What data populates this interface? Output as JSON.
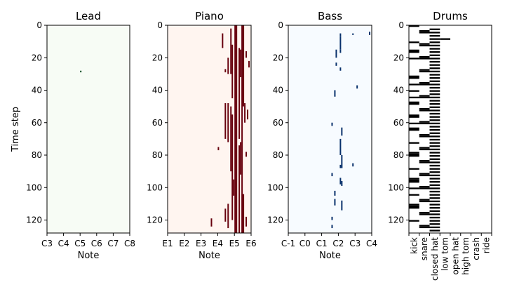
{
  "chart_data": [
    {
      "type": "heatmap",
      "title": "Lead",
      "xlabel": "Note",
      "ylabel": "Time step",
      "colors": {
        "background": "#f7fcf5",
        "note": "#00441b"
      },
      "x_ticks": [
        "C3",
        "C4",
        "C5",
        "C6",
        "C7",
        "C8"
      ],
      "y_ticks": [
        "0",
        "20",
        "40",
        "60",
        "80",
        "100",
        "120"
      ],
      "xlim": [
        "C3",
        "C8"
      ],
      "ylim": [
        0,
        128
      ],
      "notes": [
        {
          "pitch": "C5",
          "start": 28,
          "end": 29
        }
      ]
    },
    {
      "type": "heatmap",
      "title": "Piano",
      "xlabel": "Note",
      "colors": {
        "background": "#fff5f0",
        "note": "#67000d"
      },
      "x_ticks": [
        "E1",
        "E2",
        "E3",
        "E4",
        "E5",
        "E6"
      ],
      "y_ticks": [
        "0",
        "20",
        "40",
        "60",
        "80",
        "100",
        "120"
      ],
      "xlim": [
        "E1",
        "E6"
      ],
      "ylim": [
        0,
        128
      ],
      "notes": [
        {
          "pitch": "E5",
          "start": 0,
          "end": 128
        },
        {
          "pitch": "F5",
          "start": 0,
          "end": 128
        },
        {
          "pitch": "A5",
          "start": 0,
          "end": 128
        },
        {
          "pitch": "A#5",
          "start": 0,
          "end": 50
        },
        {
          "pitch": "G5",
          "start": 14,
          "end": 70
        },
        {
          "pitch": "C#5",
          "start": 2,
          "end": 30
        },
        {
          "pitch": "D5",
          "start": 12,
          "end": 45
        },
        {
          "pitch": "G#5",
          "start": 15,
          "end": 32
        },
        {
          "pitch": "G4",
          "start": 5,
          "end": 14
        },
        {
          "pitch": "B4",
          "start": 20,
          "end": 30
        },
        {
          "pitch": "A4",
          "start": 27,
          "end": 29
        },
        {
          "pitch": "C#5",
          "start": 50,
          "end": 90
        },
        {
          "pitch": "D5",
          "start": 55,
          "end": 120
        },
        {
          "pitch": "B4",
          "start": 48,
          "end": 72
        },
        {
          "pitch": "A4",
          "start": 48,
          "end": 70
        },
        {
          "pitch": "G5",
          "start": 74,
          "end": 128
        },
        {
          "pitch": "G#5",
          "start": 72,
          "end": 92
        },
        {
          "pitch": "B5",
          "start": 48,
          "end": 60
        },
        {
          "pitch": "C#6",
          "start": 52,
          "end": 58
        },
        {
          "pitch": "C6",
          "start": 78,
          "end": 81
        },
        {
          "pitch": "C6",
          "start": 118,
          "end": 124
        },
        {
          "pitch": "A#5",
          "start": 104,
          "end": 128
        },
        {
          "pitch": "A4",
          "start": 113,
          "end": 121
        },
        {
          "pitch": "B4",
          "start": 110,
          "end": 125
        },
        {
          "pitch": "D#5",
          "start": 95,
          "end": 105
        },
        {
          "pitch": "E4",
          "start": 75,
          "end": 77
        },
        {
          "pitch": "B3",
          "start": 119,
          "end": 124
        },
        {
          "pitch": "D6",
          "start": 22,
          "end": 26
        },
        {
          "pitch": "C6",
          "start": 16,
          "end": 20
        }
      ]
    },
    {
      "type": "heatmap",
      "title": "Bass",
      "xlabel": "Note",
      "colors": {
        "background": "#f7fbff",
        "note": "#08306b"
      },
      "x_ticks": [
        "C-1",
        "C0",
        "C1",
        "C2",
        "C3",
        "C4"
      ],
      "y_ticks": [
        "0",
        "20",
        "40",
        "60",
        "80",
        "100",
        "120"
      ],
      "xlim": [
        "C-1",
        "C4"
      ],
      "ylim": [
        0,
        128
      ],
      "notes": [
        {
          "pitch": "C#2",
          "start": 5,
          "end": 7
        },
        {
          "pitch": "C#2",
          "start": 7,
          "end": 15
        },
        {
          "pitch": "A#1",
          "start": 15,
          "end": 20
        },
        {
          "pitch": "C#2",
          "start": 15,
          "end": 17
        },
        {
          "pitch": "A#1",
          "start": 23,
          "end": 25
        },
        {
          "pitch": "C#2",
          "start": 26,
          "end": 28
        },
        {
          "pitch": "A#2",
          "start": 5,
          "end": 6
        },
        {
          "pitch": "C#3",
          "start": 37,
          "end": 39
        },
        {
          "pitch": "A#3",
          "start": 4,
          "end": 6
        },
        {
          "pitch": "A1",
          "start": 40,
          "end": 44
        },
        {
          "pitch": "G1",
          "start": 60,
          "end": 62
        },
        {
          "pitch": "D2",
          "start": 63,
          "end": 68
        },
        {
          "pitch": "C#2",
          "start": 70,
          "end": 80
        },
        {
          "pitch": "D2",
          "start": 80,
          "end": 88
        },
        {
          "pitch": "C#2",
          "start": 86,
          "end": 88
        },
        {
          "pitch": "A#2",
          "start": 85,
          "end": 87
        },
        {
          "pitch": "G1",
          "start": 91,
          "end": 93
        },
        {
          "pitch": "C#2",
          "start": 94,
          "end": 98
        },
        {
          "pitch": "D2",
          "start": 96,
          "end": 99
        },
        {
          "pitch": "A1",
          "start": 102,
          "end": 105
        },
        {
          "pitch": "A1",
          "start": 107,
          "end": 111
        },
        {
          "pitch": "D2",
          "start": 108,
          "end": 114
        },
        {
          "pitch": "G1",
          "start": 118,
          "end": 120
        },
        {
          "pitch": "G1",
          "start": 123,
          "end": 125
        }
      ]
    },
    {
      "type": "heatmap",
      "title": "Drums",
      "colors": {
        "background": "#ffffff",
        "note": "#000000"
      },
      "x_ticks": [
        "kick",
        "snare",
        "closed hat",
        "low tom",
        "open hat",
        "high tom",
        "crash",
        "ride"
      ],
      "y_ticks": [
        "0",
        "20",
        "40",
        "60",
        "80",
        "100",
        "120"
      ],
      "ylim": [
        0,
        128
      ],
      "hits": {
        "kick": [
          0,
          10,
          15,
          16,
          20,
          31,
          32,
          36,
          40,
          44,
          47,
          48,
          55,
          56,
          60,
          63,
          64,
          72,
          78,
          79,
          80,
          88,
          94,
          95,
          96,
          100,
          104,
          110,
          111,
          112,
          120
        ],
        "snare": [
          3,
          4,
          11,
          12,
          19,
          20,
          27,
          28,
          35,
          36,
          43,
          44,
          51,
          52,
          59,
          60,
          67,
          68,
          75,
          76,
          83,
          84,
          91,
          92,
          99,
          100,
          107,
          108,
          115,
          116,
          123,
          124
        ],
        "closed hat": [
          2,
          4,
          6,
          8,
          10,
          12,
          14,
          16,
          18,
          20,
          22,
          24,
          26,
          28,
          30,
          32,
          34,
          36,
          38,
          40,
          42,
          44,
          46,
          48,
          50,
          52,
          54,
          56,
          58,
          60,
          62,
          64,
          66,
          68,
          70,
          72,
          74,
          76,
          78,
          80,
          82,
          84,
          86,
          88,
          90,
          92,
          94,
          96,
          98,
          100,
          102,
          104,
          106,
          108,
          110,
          112,
          114,
          116,
          118,
          120,
          122,
          124,
          126
        ],
        "low tom": [
          8
        ]
      }
    }
  ]
}
